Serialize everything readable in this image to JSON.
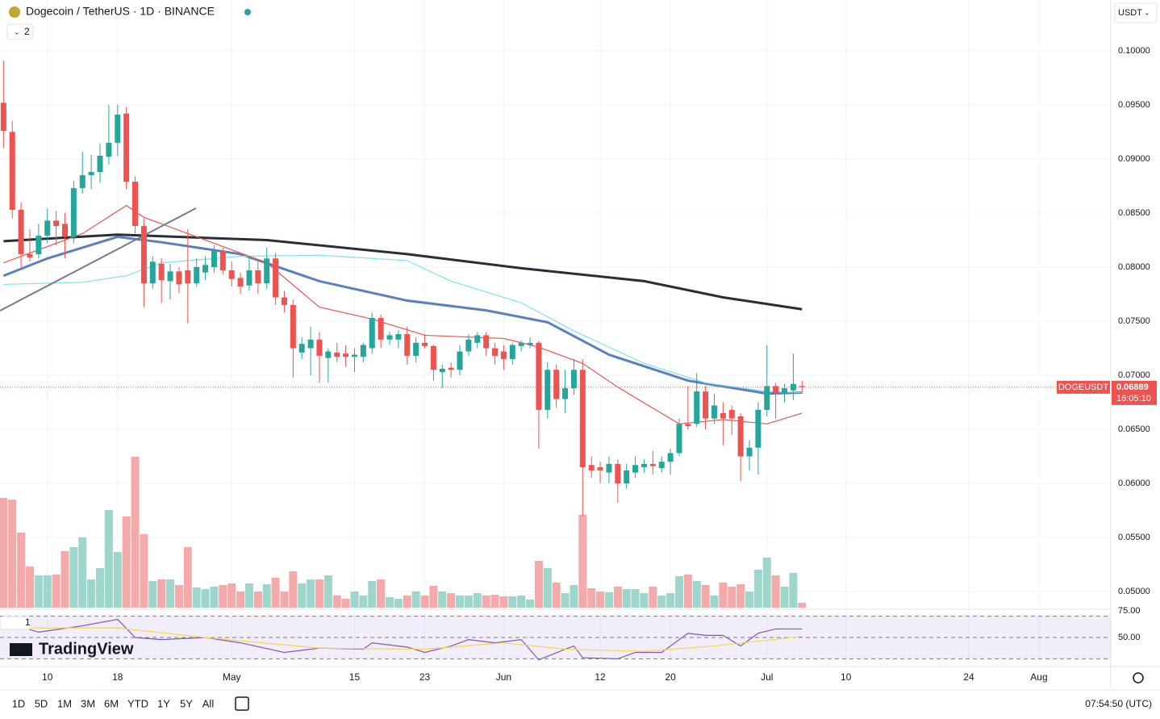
{
  "header": {
    "symbol": "Dogecoin / TetherUS · 1D · BINANCE",
    "indicator_count": "2",
    "currency": "USDT"
  },
  "logo": "TradingView",
  "chart_data": {
    "type": "candlestick",
    "up_color": "#26a69a",
    "down_color": "#ef5350",
    "candles": [
      [
        0.0952,
        0.0991,
        0.091,
        0.0926
      ],
      [
        0.0925,
        0.0935,
        0.0845,
        0.0853
      ],
      [
        0.0853,
        0.086,
        0.08,
        0.0812
      ],
      [
        0.0812,
        0.0835,
        0.0805,
        0.0809
      ],
      [
        0.0812,
        0.084,
        0.0808,
        0.0829
      ],
      [
        0.0829,
        0.0854,
        0.0822,
        0.0843
      ],
      [
        0.0843,
        0.0852,
        0.082,
        0.0838
      ],
      [
        0.084,
        0.085,
        0.0808,
        0.0828
      ],
      [
        0.0828,
        0.088,
        0.0822,
        0.0873
      ],
      [
        0.0873,
        0.0907,
        0.0868,
        0.0885
      ],
      [
        0.0885,
        0.0904,
        0.0872,
        0.0888
      ],
      [
        0.0888,
        0.0914,
        0.0878,
        0.0903
      ],
      [
        0.0902,
        0.095,
        0.0895,
        0.0915
      ],
      [
        0.0915,
        0.095,
        0.0903,
        0.0941
      ],
      [
        0.0942,
        0.0948,
        0.0872,
        0.0879
      ],
      [
        0.0879,
        0.0884,
        0.0831,
        0.0838
      ],
      [
        0.0838,
        0.0845,
        0.0763,
        0.0785
      ],
      [
        0.0785,
        0.081,
        0.078,
        0.0805
      ],
      [
        0.0803,
        0.0808,
        0.0767,
        0.0788
      ],
      [
        0.0787,
        0.0803,
        0.077,
        0.0796
      ],
      [
        0.0796,
        0.08,
        0.0776,
        0.0784
      ],
      [
        0.0797,
        0.0835,
        0.0748,
        0.0785
      ],
      [
        0.0785,
        0.0808,
        0.0782,
        0.08
      ],
      [
        0.0795,
        0.081,
        0.0788,
        0.0802
      ],
      [
        0.08,
        0.082,
        0.0795,
        0.0815
      ],
      [
        0.0815,
        0.0818,
        0.0793,
        0.0797
      ],
      [
        0.0797,
        0.0805,
        0.0782,
        0.0789
      ],
      [
        0.079,
        0.0795,
        0.0775,
        0.0782
      ],
      [
        0.0783,
        0.081,
        0.0778,
        0.0797
      ],
      [
        0.0797,
        0.0805,
        0.0775,
        0.0785
      ],
      [
        0.0785,
        0.0818,
        0.078,
        0.0808
      ],
      [
        0.0808,
        0.0813,
        0.0765,
        0.0772
      ],
      [
        0.0772,
        0.0778,
        0.0758,
        0.0765
      ],
      [
        0.0765,
        0.077,
        0.0698,
        0.0725
      ],
      [
        0.0721,
        0.0735,
        0.0715,
        0.0729
      ],
      [
        0.0725,
        0.0745,
        0.07,
        0.0733
      ],
      [
        0.0733,
        0.074,
        0.0693,
        0.0718
      ],
      [
        0.0716,
        0.0725,
        0.0693,
        0.0722
      ],
      [
        0.0721,
        0.073,
        0.0712,
        0.0717
      ],
      [
        0.072,
        0.0728,
        0.0708,
        0.0717
      ],
      [
        0.0717,
        0.0725,
        0.0703,
        0.0719
      ],
      [
        0.0717,
        0.073,
        0.0712,
        0.0728
      ],
      [
        0.0725,
        0.0758,
        0.072,
        0.0753
      ],
      [
        0.0753,
        0.0756,
        0.0725,
        0.0733
      ],
      [
        0.0733,
        0.074,
        0.0728,
        0.0737
      ],
      [
        0.0733,
        0.0742,
        0.0725,
        0.0738
      ],
      [
        0.0738,
        0.0745,
        0.071,
        0.0718
      ],
      [
        0.0718,
        0.0735,
        0.0712,
        0.073
      ],
      [
        0.073,
        0.0738,
        0.0725,
        0.0727
      ],
      [
        0.0727,
        0.0728,
        0.0695,
        0.0705
      ],
      [
        0.0703,
        0.071,
        0.0688,
        0.0706
      ],
      [
        0.0707,
        0.0712,
        0.0698,
        0.0705
      ],
      [
        0.0705,
        0.0728,
        0.07,
        0.0722
      ],
      [
        0.0722,
        0.0738,
        0.0718,
        0.0733
      ],
      [
        0.073,
        0.074,
        0.0725,
        0.0737
      ],
      [
        0.0737,
        0.074,
        0.0718,
        0.0725
      ],
      [
        0.0725,
        0.073,
        0.071,
        0.0718
      ],
      [
        0.0722,
        0.0728,
        0.0705,
        0.0715
      ],
      [
        0.0715,
        0.073,
        0.071,
        0.0728
      ],
      [
        0.0727,
        0.0732,
        0.0722,
        0.073
      ],
      [
        0.0728,
        0.0735,
        0.0725,
        0.073
      ],
      [
        0.073,
        0.0732,
        0.0632,
        0.0668
      ],
      [
        0.0668,
        0.0712,
        0.066,
        0.0705
      ],
      [
        0.0705,
        0.071,
        0.067,
        0.0678
      ],
      [
        0.0678,
        0.0705,
        0.0665,
        0.0688
      ],
      [
        0.0688,
        0.0715,
        0.0682,
        0.0705
      ],
      [
        0.0705,
        0.0715,
        0.057,
        0.0615
      ],
      [
        0.0617,
        0.0625,
        0.0605,
        0.0612
      ],
      [
        0.0615,
        0.062,
        0.06,
        0.0612
      ],
      [
        0.061,
        0.0625,
        0.06,
        0.0618
      ],
      [
        0.0618,
        0.0622,
        0.0582,
        0.06
      ],
      [
        0.06,
        0.0618,
        0.0595,
        0.0612
      ],
      [
        0.061,
        0.0625,
        0.0605,
        0.0617
      ],
      [
        0.0615,
        0.0622,
        0.061,
        0.0618
      ],
      [
        0.0618,
        0.063,
        0.0608,
        0.0616
      ],
      [
        0.0614,
        0.0625,
        0.061,
        0.062
      ],
      [
        0.062,
        0.0632,
        0.0608,
        0.0628
      ],
      [
        0.0628,
        0.066,
        0.0625,
        0.0655
      ],
      [
        0.0655,
        0.069,
        0.065,
        0.0653
      ],
      [
        0.0655,
        0.0702,
        0.0652,
        0.0685
      ],
      [
        0.0685,
        0.069,
        0.065,
        0.066
      ],
      [
        0.066,
        0.0683,
        0.0655,
        0.0672
      ],
      [
        0.0665,
        0.0675,
        0.0635,
        0.066
      ],
      [
        0.0668,
        0.0672,
        0.0645,
        0.066
      ],
      [
        0.0662,
        0.0665,
        0.0602,
        0.0625
      ],
      [
        0.0625,
        0.064,
        0.0612,
        0.0633
      ],
      [
        0.0633,
        0.0675,
        0.0608,
        0.0668
      ],
      [
        0.0668,
        0.0728,
        0.0662,
        0.069
      ],
      [
        0.069,
        0.0693,
        0.066,
        0.0684
      ],
      [
        0.0684,
        0.0692,
        0.0675,
        0.0688
      ],
      [
        0.0686,
        0.072,
        0.0677,
        0.0692
      ],
      [
        0.069,
        0.0695,
        0.0683,
        0.0689
      ]
    ],
    "volume": [
      136,
      134,
      93,
      51,
      40,
      40,
      41,
      70,
      75,
      87,
      35,
      49,
      121,
      69,
      113,
      187,
      91,
      33,
      35,
      35,
      28,
      75,
      25,
      23,
      26,
      28,
      30,
      20,
      30,
      20,
      29,
      37,
      20,
      45,
      30,
      35,
      35,
      40,
      15,
      11,
      20,
      15,
      33,
      35,
      13,
      11,
      15,
      20,
      15,
      27,
      20,
      18,
      15,
      15,
      18,
      15,
      16,
      14,
      14,
      15,
      10,
      58,
      49,
      31,
      18,
      28,
      115,
      24,
      20,
      19,
      26,
      23,
      23,
      18,
      26,
      15,
      18,
      39,
      41,
      33,
      28,
      15,
      31,
      26,
      29,
      20,
      47,
      62,
      40,
      26,
      43,
      6
    ],
    "vlim": [
      0,
      200
    ],
    "volume_up_color": "#9fd6cc",
    "volume_down_color": "#f4aaaa",
    "ylim": [
      0.04836,
      0.1047
    ],
    "yticks": [
      {
        "value": 0.05,
        "label": "0.05000"
      },
      {
        "value": 0.055,
        "label": "0.05500"
      },
      {
        "value": 0.06,
        "label": "0.06000"
      },
      {
        "value": 0.065,
        "label": "0.06500"
      },
      {
        "value": 0.07,
        "label": "0.07000"
      },
      {
        "value": 0.075,
        "label": "0.07500"
      },
      {
        "value": 0.08,
        "label": "0.08000"
      },
      {
        "value": 0.085,
        "label": "0.08500"
      },
      {
        "value": 0.09,
        "label": "0.09000"
      },
      {
        "value": 0.095,
        "label": "0.09500"
      },
      {
        "value": 0.1,
        "label": "0.10000"
      }
    ],
    "xlim": [
      -0.4,
      126
    ],
    "xticks": [
      {
        "value": 5,
        "label": "10"
      },
      {
        "value": 13,
        "label": "18"
      },
      {
        "value": 26,
        "label": "May"
      },
      {
        "value": 40,
        "label": "15"
      },
      {
        "value": 48,
        "label": "23"
      },
      {
        "value": 57,
        "label": "Jun"
      },
      {
        "value": 68,
        "label": "12"
      },
      {
        "value": 76,
        "label": "20"
      },
      {
        "value": 87,
        "label": "Jul"
      },
      {
        "value": 96,
        "label": "10"
      },
      {
        "value": 110,
        "label": "24"
      },
      {
        "value": 118,
        "label": "Aug"
      }
    ],
    "moving_averages": [
      {
        "color": "#2a2e39",
        "width": 3,
        "x": [
          0,
          13,
          30,
          46,
          59,
          73,
          82,
          91
        ],
        "values": [
          0.0824,
          0.083,
          0.0825,
          0.0812,
          0.0799,
          0.0787,
          0.0772,
          0.0761
        ]
      },
      {
        "color": "#5b7fbf",
        "width": 3,
        "x": [
          0,
          5,
          13,
          18,
          27,
          36,
          46,
          55,
          62,
          69,
          78,
          87,
          91
        ],
        "values": [
          0.0792,
          0.0808,
          0.0828,
          0.0823,
          0.0812,
          0.0787,
          0.0769,
          0.076,
          0.0749,
          0.0719,
          0.0695,
          0.0683,
          0.0684
        ]
      },
      {
        "color": "#7fe3ec",
        "width": 1.2,
        "x": [
          0,
          9,
          14,
          18,
          27,
          36,
          46,
          51,
          59,
          65,
          73,
          80,
          87,
          91
        ],
        "values": [
          0.0784,
          0.0786,
          0.0792,
          0.0804,
          0.081,
          0.0811,
          0.0806,
          0.0787,
          0.0767,
          0.0741,
          0.0711,
          0.0693,
          0.0685,
          0.0684
        ]
      },
      {
        "color": "#e8554e",
        "width": 1.2,
        "x": [
          0,
          5,
          9,
          14,
          16,
          23,
          30,
          36,
          42,
          48,
          57,
          61,
          66,
          70,
          77,
          82,
          87,
          91
        ],
        "values": [
          0.0804,
          0.0819,
          0.0831,
          0.0857,
          0.0846,
          0.0825,
          0.0804,
          0.0763,
          0.0752,
          0.0737,
          0.0734,
          0.0726,
          0.0711,
          0.0689,
          0.0655,
          0.0659,
          0.0655,
          0.0665
        ]
      }
    ],
    "last_price": {
      "symbol": "DOGEUSDT",
      "value": 0.06889,
      "countdown": "16:05:10"
    },
    "rsi": {
      "label": "1",
      "ylim": [
        25,
        75
      ],
      "yticks": [
        {
          "value": 75,
          "label": "75.00"
        },
        {
          "value": 50,
          "label": "50.00"
        }
      ],
      "levels": [
        70,
        50,
        30
      ],
      "lines": [
        {
          "color": "#7e57c2",
          "x": [
            0,
            4,
            9,
            13,
            15,
            18,
            23,
            27,
            32,
            36,
            41,
            42,
            46,
            48,
            51,
            53,
            56,
            59,
            61,
            64,
            65,
            66,
            70,
            72,
            75,
            78,
            80,
            82,
            84,
            86,
            88,
            91
          ],
          "values": [
            65,
            55,
            61,
            67,
            50,
            48,
            50,
            45,
            36,
            40,
            39,
            45,
            41,
            36,
            42,
            48,
            45,
            48,
            29,
            39,
            42,
            31,
            30,
            36,
            36,
            54,
            52,
            52,
            42,
            54,
            58,
            58
          ]
        },
        {
          "color": "#f5d84a",
          "x": [
            0,
            13,
            23,
            36,
            48,
            57,
            64,
            73,
            81,
            91
          ],
          "values": [
            59,
            59,
            50,
            40,
            39,
            45,
            39,
            37,
            42,
            51
          ]
        }
      ]
    }
  },
  "footer": {
    "ranges": [
      "1D",
      "5D",
      "1M",
      "3M",
      "6M",
      "YTD",
      "1Y",
      "5Y",
      "All"
    ],
    "clock": "07:54:50 (UTC)"
  }
}
